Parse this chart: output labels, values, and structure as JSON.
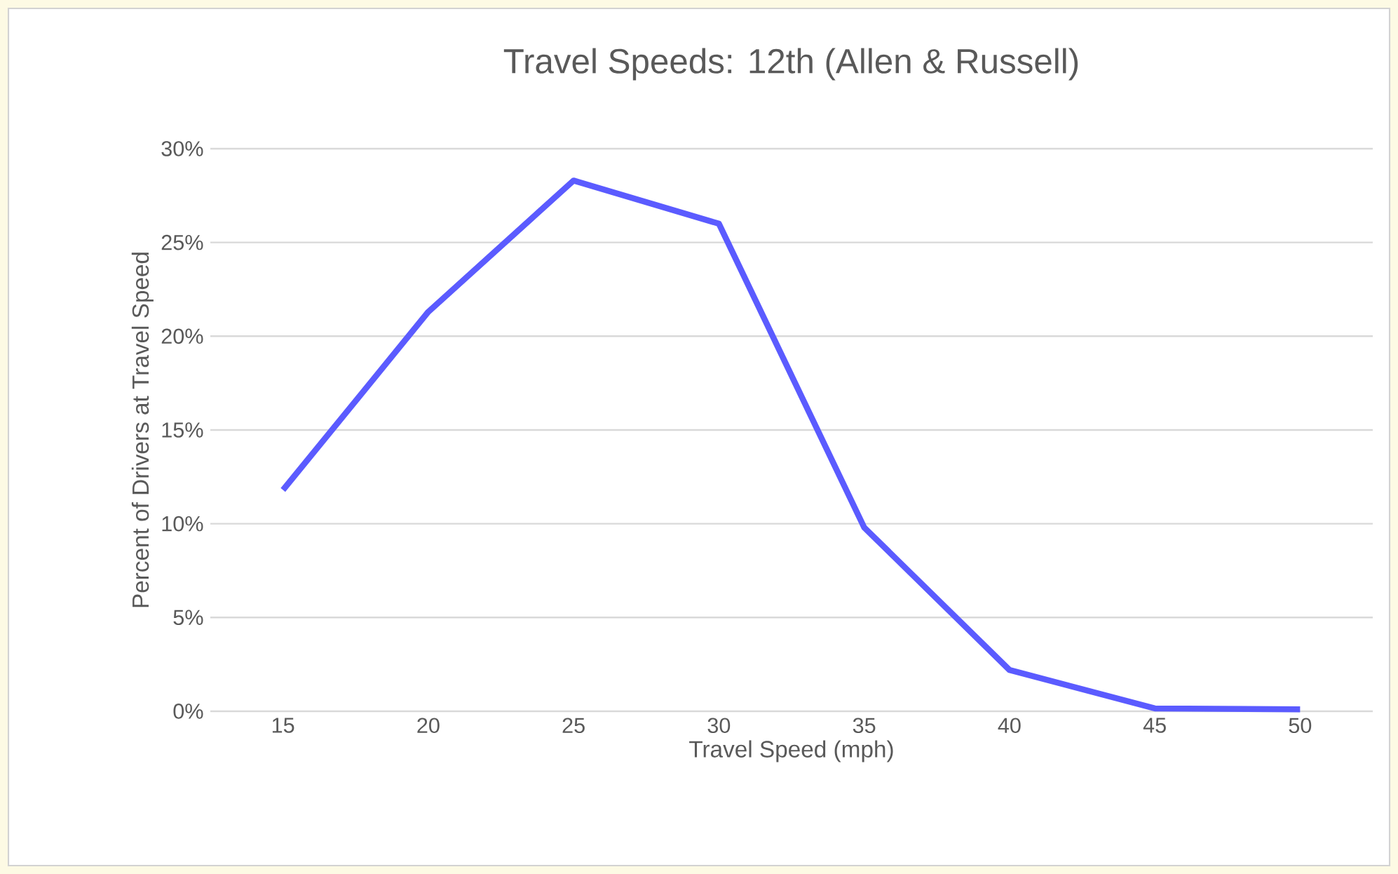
{
  "chart_data": {
    "type": "line",
    "title": "Travel Speeds: 12th (Allen & Russell)",
    "xlabel": "Travel Speed (mph)",
    "ylabel": "Percent of Drivers at Travel Speed",
    "categories": [
      "15",
      "20",
      "25",
      "30",
      "35",
      "40",
      "45",
      "50"
    ],
    "series": [
      {
        "color": "#5b5bff",
        "values": [
          11.8,
          21.3,
          28.3,
          26.0,
          9.8,
          2.2,
          0.15,
          0.1
        ]
      }
    ],
    "ylim": [
      0,
      30
    ],
    "yticks": [
      {
        "value": 0,
        "label": "0%"
      },
      {
        "value": 5,
        "label": "5%"
      },
      {
        "value": 10,
        "label": "10%"
      },
      {
        "value": 15,
        "label": "15%"
      },
      {
        "value": 20,
        "label": "20%"
      },
      {
        "value": 25,
        "label": "25%"
      },
      {
        "value": 30,
        "label": "30%"
      }
    ],
    "grid": "y"
  }
}
